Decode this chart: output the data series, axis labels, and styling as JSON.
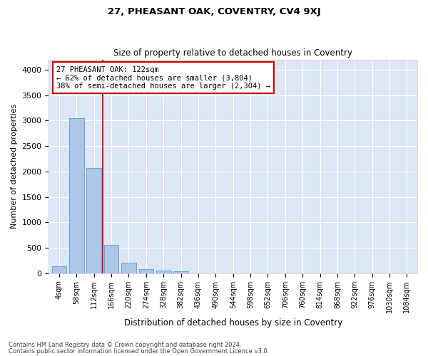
{
  "title": "27, PHEASANT OAK, COVENTRY, CV4 9XJ",
  "subtitle": "Size of property relative to detached houses in Coventry",
  "xlabel": "Distribution of detached houses by size in Coventry",
  "ylabel": "Number of detached properties",
  "footer_line1": "Contains HM Land Registry data © Crown copyright and database right 2024.",
  "footer_line2": "Contains public sector information licensed under the Open Government Licence v3.0.",
  "bar_labels": [
    "4sqm",
    "58sqm",
    "112sqm",
    "166sqm",
    "220sqm",
    "274sqm",
    "328sqm",
    "382sqm",
    "436sqm",
    "490sqm",
    "544sqm",
    "598sqm",
    "652sqm",
    "706sqm",
    "760sqm",
    "814sqm",
    "868sqm",
    "922sqm",
    "976sqm",
    "1030sqm",
    "1084sqm"
  ],
  "bar_values": [
    140,
    3050,
    2060,
    555,
    200,
    75,
    50,
    35,
    0,
    0,
    0,
    0,
    0,
    0,
    0,
    0,
    0,
    0,
    0,
    0,
    0
  ],
  "bar_color": "#aec6e8",
  "bar_edge_color": "#5b9bd5",
  "bg_color": "#dce6f5",
  "grid_color": "#ffffff",
  "vline_x": 2.5,
  "vline_color": "#cc0000",
  "annotation_text": "27 PHEASANT OAK: 122sqm\n← 62% of detached houses are smaller (3,804)\n38% of semi-detached houses are larger (2,304) →",
  "annotation_box_color": "#ffffff",
  "annotation_box_edge": "#cc0000",
  "ylim": [
    0,
    4200
  ],
  "yticks": [
    0,
    500,
    1000,
    1500,
    2000,
    2500,
    3000,
    3500,
    4000
  ],
  "fig_width": 6.0,
  "fig_height": 5.0,
  "fig_dpi": 100
}
